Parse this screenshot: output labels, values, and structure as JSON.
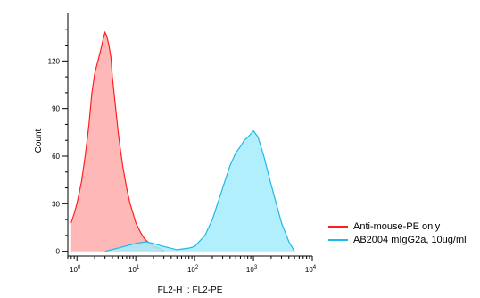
{
  "chart_data": {
    "type": "area",
    "title": "",
    "xlabel": "FL2-H :: FL2-PE",
    "ylabel": "Count",
    "xscale": "log",
    "xlim": [
      0.7,
      10000
    ],
    "ylim": [
      -3,
      150
    ],
    "x_ticks": [
      {
        "value": 1,
        "base": "10",
        "exp": "0"
      },
      {
        "value": 10,
        "base": "10",
        "exp": "1"
      },
      {
        "value": 100,
        "base": "10",
        "exp": "2"
      },
      {
        "value": 1000,
        "base": "10",
        "exp": "3"
      },
      {
        "value": 10000,
        "base": "10",
        "exp": "4"
      }
    ],
    "y_ticks": [
      {
        "value": 0,
        "label": "0"
      },
      {
        "value": 30,
        "label": "30"
      },
      {
        "value": 60,
        "label": "60"
      },
      {
        "value": 90,
        "label": "90"
      },
      {
        "value": 120,
        "label": "120"
      }
    ],
    "legend_position": "right",
    "series": [
      {
        "name": "Anti-mouse-PE only",
        "color": "#ff1f1f",
        "fill": "#ffabab",
        "x": [
          0.8,
          0.9,
          1,
          1.2,
          1.4,
          1.6,
          1.8,
          2,
          2.2,
          2.5,
          2.8,
          3,
          3.2,
          3.5,
          3.8,
          4,
          4.5,
          5,
          5.5,
          6,
          7,
          8,
          9,
          10,
          12,
          14,
          16,
          20,
          25,
          30
        ],
        "values": [
          18,
          24,
          30,
          44,
          62,
          80,
          100,
          112,
          118,
          126,
          134,
          138,
          136,
          130,
          122,
          110,
          92,
          76,
          64,
          54,
          40,
          30,
          24,
          18,
          12,
          8,
          6,
          3,
          2,
          0
        ]
      },
      {
        "name": "AB2004 mIgG2a, 10ug/ml",
        "color": "#1fb8e8",
        "fill": "#a5ecfb",
        "x": [
          3,
          5,
          8,
          10,
          15,
          20,
          30,
          50,
          80,
          100,
          150,
          200,
          300,
          400,
          500,
          600,
          700,
          800,
          900,
          1000,
          1200,
          1500,
          2000,
          3000,
          4000,
          5000
        ],
        "values": [
          0,
          2,
          4,
          5,
          6,
          5,
          3,
          1,
          2,
          3,
          10,
          20,
          40,
          54,
          62,
          66,
          70,
          72,
          74,
          76,
          72,
          60,
          42,
          18,
          6,
          0
        ]
      }
    ]
  }
}
